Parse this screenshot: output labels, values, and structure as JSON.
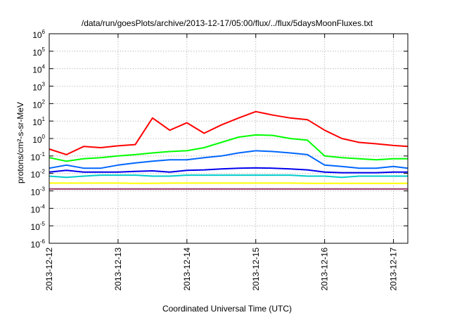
{
  "chart_data": {
    "type": "line",
    "title": "/data/run/goesPlots/archive/2013-12-17/05:00/flux/../flux/5daysMoonFluxes.txt",
    "xlabel": "Coordinated Universal Time (UTC)",
    "ylabel": "protons/cm²-s-sr-MeV",
    "y_scale": "log",
    "ylim": [
      1e-06,
      1000000.0
    ],
    "xlim": [
      "2013-12-12T00:00",
      "2013-12-17T05:00"
    ],
    "x_ticks": [
      "2013-12-12",
      "2013-12-13",
      "2013-12-14",
      "2013-12-15",
      "2013-12-16",
      "2013-12-17"
    ],
    "y_ticks": [
      {
        "value": 1e-06,
        "base": "10",
        "exp": "-6"
      },
      {
        "value": 1e-05,
        "base": "10",
        "exp": "-5"
      },
      {
        "value": 0.0001,
        "base": "10",
        "exp": "-4"
      },
      {
        "value": 0.001,
        "base": "10",
        "exp": "-3"
      },
      {
        "value": 0.01,
        "base": "10",
        "exp": "-2"
      },
      {
        "value": 0.1,
        "base": "10",
        "exp": "-1"
      },
      {
        "value": 1,
        "base": "10",
        "exp": "0"
      },
      {
        "value": 10,
        "base": "10",
        "exp": "1"
      },
      {
        "value": 100,
        "base": "10",
        "exp": "2"
      },
      {
        "value": 1000,
        "base": "10",
        "exp": "3"
      },
      {
        "value": 10000,
        "base": "10",
        "exp": "4"
      },
      {
        "value": 100000,
        "base": "10",
        "exp": "5"
      },
      {
        "value": 1000000,
        "base": "10",
        "exp": "6"
      }
    ],
    "grid": true,
    "legend": "none",
    "x": [
      "2013-12-12T00:00",
      "2013-12-12T06:00",
      "2013-12-12T12:00",
      "2013-12-12T18:00",
      "2013-12-13T00:00",
      "2013-12-13T06:00",
      "2013-12-13T12:00",
      "2013-12-13T18:00",
      "2013-12-14T00:00",
      "2013-12-14T06:00",
      "2013-12-14T12:00",
      "2013-12-14T18:00",
      "2013-12-15T00:00",
      "2013-12-15T06:00",
      "2013-12-15T12:00",
      "2013-12-15T18:00",
      "2013-12-16T00:00",
      "2013-12-16T06:00",
      "2013-12-16T12:00",
      "2013-12-16T18:00",
      "2013-12-17T00:00",
      "2013-12-17T05:00"
    ],
    "series": [
      {
        "color": "#ff0000",
        "values": [
          0.25,
          0.12,
          0.35,
          0.3,
          0.38,
          0.45,
          15,
          3,
          8,
          2,
          6,
          15,
          35,
          22,
          15,
          12,
          3,
          1,
          0.6,
          0.5,
          0.4,
          0.35
        ]
      },
      {
        "color": "#00ff00",
        "values": [
          0.08,
          0.05,
          0.07,
          0.08,
          0.1,
          0.12,
          0.15,
          0.18,
          0.2,
          0.3,
          0.6,
          1.2,
          1.6,
          1.5,
          1.0,
          0.8,
          0.1,
          0.08,
          0.07,
          0.06,
          0.07,
          0.07
        ]
      },
      {
        "color": "#0066ff",
        "values": [
          0.02,
          0.03,
          0.02,
          0.02,
          0.03,
          0.04,
          0.05,
          0.06,
          0.06,
          0.08,
          0.1,
          0.15,
          0.2,
          0.18,
          0.15,
          0.12,
          0.03,
          0.025,
          0.02,
          0.02,
          0.025,
          0.02
        ]
      },
      {
        "color": "#0000ee",
        "values": [
          0.012,
          0.015,
          0.012,
          0.012,
          0.012,
          0.013,
          0.014,
          0.012,
          0.015,
          0.016,
          0.018,
          0.02,
          0.021,
          0.02,
          0.018,
          0.016,
          0.012,
          0.011,
          0.011,
          0.011,
          0.012,
          0.012
        ]
      },
      {
        "color": "#00cccc",
        "values": [
          0.007,
          0.006,
          0.007,
          0.008,
          0.008,
          0.008,
          0.007,
          0.007,
          0.008,
          0.008,
          0.008,
          0.008,
          0.008,
          0.008,
          0.008,
          0.007,
          0.007,
          0.006,
          0.007,
          0.007,
          0.007,
          0.007
        ]
      },
      {
        "color": "#ffff00",
        "values": [
          0.0028,
          0.0028,
          0.0028,
          0.0028,
          0.0028,
          0.0027,
          0.0027,
          0.0028,
          0.0028,
          0.0028,
          0.0028,
          0.0028,
          0.0028,
          0.0028,
          0.0028,
          0.0027,
          0.0027,
          0.0027,
          0.0027,
          0.0027,
          0.0027,
          0.0027
        ]
      },
      {
        "color": "#993366",
        "values": [
          0.0013,
          0.0013,
          0.0013,
          0.0013,
          0.0013,
          0.0013,
          0.0013,
          0.0013,
          0.0013,
          0.0013,
          0.0013,
          0.0013,
          0.0013,
          0.0013,
          0.0013,
          0.0013,
          0.0013,
          0.0013,
          0.0013,
          0.0013,
          0.0013,
          0.0013
        ]
      }
    ]
  }
}
